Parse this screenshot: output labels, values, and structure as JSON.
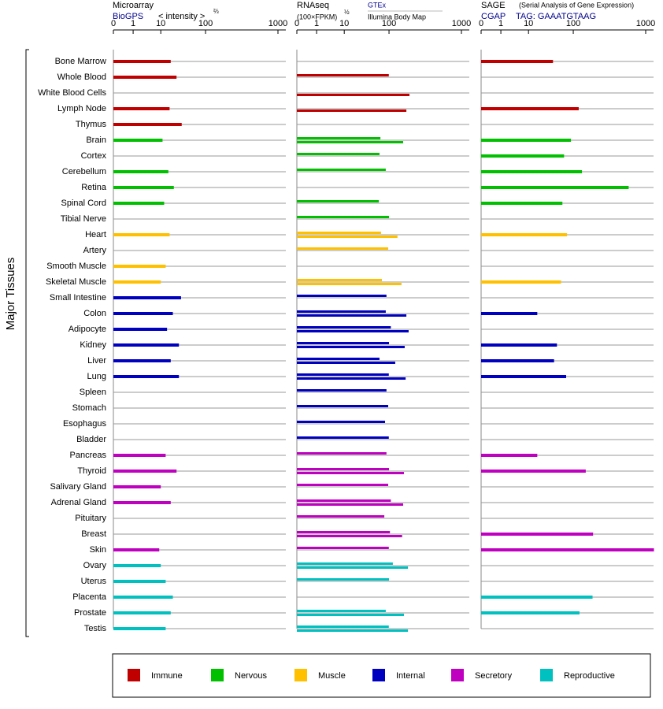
{
  "chart_data": {
    "type": "bar",
    "y_label": "Major Tissues",
    "categories": [
      "Bone Marrow",
      "Whole Blood",
      "White Blood Cells",
      "Lymph Node",
      "Thymus",
      "Brain",
      "Cortex",
      "Cerebellum",
      "Retina",
      "Spinal Cord",
      "Tibial Nerve",
      "Heart",
      "Artery",
      "Smooth Muscle",
      "Skeletal Muscle",
      "Small Intestine",
      "Colon",
      "Adipocyte",
      "Kidney",
      "Liver",
      "Lung",
      "Spleen",
      "Stomach",
      "Esophagus",
      "Bladder",
      "Pancreas",
      "Thyroid",
      "Salivary Gland",
      "Adrenal Gland",
      "Pituitary",
      "Breast",
      "Skin",
      "Ovary",
      "Uterus",
      "Placenta",
      "Prostate",
      "Testis"
    ],
    "tissue_groups": [
      0,
      0,
      0,
      0,
      0,
      1,
      1,
      1,
      1,
      1,
      1,
      2,
      2,
      2,
      2,
      3,
      3,
      3,
      3,
      3,
      3,
      3,
      3,
      3,
      3,
      4,
      4,
      4,
      4,
      4,
      4,
      4,
      5,
      5,
      5,
      5,
      5
    ],
    "groups": [
      {
        "name": "Immune",
        "color": "#c00000"
      },
      {
        "name": "Nervous",
        "color": "#00c000"
      },
      {
        "name": "Muscle",
        "color": "#ffc000"
      },
      {
        "name": "Internal",
        "color": "#0000c0"
      },
      {
        "name": "Secretory",
        "color": "#c000c0"
      },
      {
        "name": "Reproductive",
        "color": "#00c0c0"
      }
    ],
    "panels": [
      {
        "title": "Microarray",
        "unit": "< intensity >",
        "unit_exponent": "⅔",
        "xlim": [
          0,
          1000
        ],
        "xticks": [
          0,
          1,
          10,
          100,
          1000
        ],
        "series": [
          {
            "name": "BioGPS",
            "values": [
              17,
              23,
              null,
              16,
              30,
              11,
              null,
              15,
              20,
              12,
              null,
              16,
              null,
              13,
              10,
              29,
              19,
              14,
              26,
              17,
              26,
              null,
              null,
              null,
              null,
              13,
              23,
              10,
              17,
              null,
              null,
              9,
              10,
              13,
              19,
              17,
              13
            ]
          }
        ]
      },
      {
        "title": "RNAseq",
        "unit": "(100×FPKM)",
        "unit_exponent": "½",
        "xlim": [
          0,
          1000
        ],
        "xticks": [
          0,
          1,
          10,
          100,
          1000
        ],
        "series": [
          {
            "name": "GTEx",
            "values": [
              null,
              99,
              null,
              null,
              null,
              65,
              62,
              85,
              null,
              60,
              100,
              67,
              96,
              null,
              70,
              88,
              85,
              106,
              100,
              62,
              99,
              88,
              96,
              82,
              99,
              88,
              100,
              96,
              106,
              79,
              103,
              99,
              113,
              100,
              null,
              85,
              99
            ]
          },
          {
            "name": "Illumina Body Map",
            "values": [
              null,
              null,
              192,
              174,
              null,
              157,
              null,
              null,
              null,
              null,
              null,
              131,
              null,
              null,
              149,
              null,
              174,
              187,
              165,
              122,
              170,
              null,
              null,
              null,
              null,
              null,
              161,
              null,
              157,
              null,
              152,
              null,
              183,
              null,
              null,
              161,
              183
            ]
          }
        ]
      },
      {
        "title": "SAGE",
        "subtitle": "(Serial Analysis of Gene Expression)",
        "unit": "TAG: GAAATGTAAG",
        "xlim": [
          0,
          1000
        ],
        "xticks": [
          0,
          1,
          10,
          100,
          1000
        ],
        "series": [
          {
            "name": "CGAP",
            "values": [
              36,
              null,
              null,
              119,
              null,
              89,
              63,
              132,
              583,
              58,
              null,
              73,
              null,
              null,
              54,
              null,
              16,
              null,
              44,
              38,
              70,
              null,
              null,
              null,
              null,
              16,
              149,
              null,
              null,
              null,
              188,
              1300,
              null,
              null,
              185,
              122,
              null
            ]
          }
        ]
      }
    ]
  }
}
